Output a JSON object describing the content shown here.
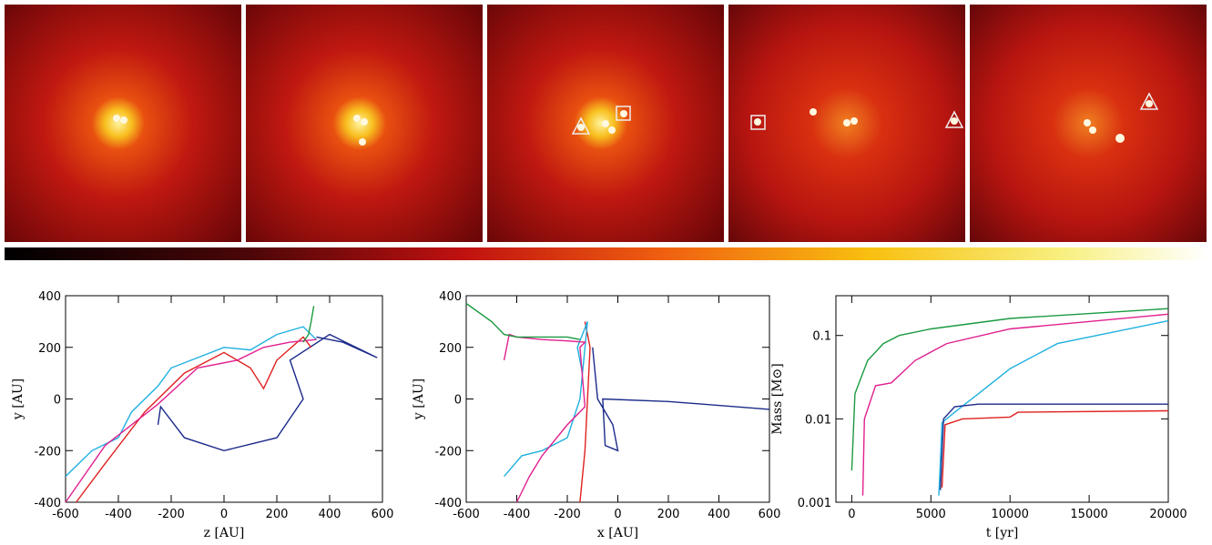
{
  "chart_data": [
    {
      "type": "line",
      "x_label": "z [AU]",
      "y_label": "y [AU]",
      "xlim": [
        -600,
        600
      ],
      "ylim": [
        -400,
        400
      ],
      "xticks": [
        -600,
        -400,
        -200,
        0,
        200,
        400,
        600
      ],
      "yticks": [
        -400,
        -200,
        0,
        200,
        400
      ],
      "series": [
        {
          "color": "#1b2a8a",
          "x": [
            -250,
            -240,
            -150,
            0,
            200,
            300,
            250,
            400,
            580,
            450,
            350
          ],
          "values": [
            -100,
            -30,
            -150,
            -200,
            -150,
            0,
            150,
            250,
            160,
            220,
            240
          ]
        },
        {
          "color": "#e02020",
          "x": [
            -560,
            -450,
            -300,
            -150,
            0,
            100,
            150,
            200,
            300,
            330
          ],
          "values": [
            -400,
            -250,
            -50,
            100,
            180,
            120,
            40,
            150,
            240,
            200
          ]
        },
        {
          "color": "#1fb0e0",
          "x": [
            -600,
            -500,
            -400,
            -350,
            -300,
            -250,
            -200,
            -100,
            0,
            100,
            200,
            300,
            350
          ],
          "values": [
            -300,
            -200,
            -150,
            -50,
            0,
            50,
            120,
            160,
            200,
            190,
            250,
            280,
            230
          ]
        },
        {
          "color": "#e0208f",
          "x": [
            -600,
            -450,
            -250,
            -100,
            50,
            150,
            250,
            350
          ],
          "values": [
            -400,
            -180,
            -20,
            120,
            150,
            200,
            220,
            230
          ]
        },
        {
          "color": "#1a9a40",
          "x": [
            340,
            330,
            320,
            300
          ],
          "values": [
            360,
            300,
            250,
            220
          ]
        }
      ]
    },
    {
      "type": "line",
      "x_label": "x [AU]",
      "y_label": "y [AU]",
      "xlim": [
        -600,
        600
      ],
      "ylim": [
        -400,
        400
      ],
      "xticks": [
        -600,
        -400,
        -200,
        0,
        200,
        400,
        600
      ],
      "yticks": [
        -400,
        -200,
        0,
        200,
        400
      ],
      "series": [
        {
          "color": "#1b2a8a",
          "x": [
            -100,
            -80,
            -20,
            0,
            -50,
            -60,
            200,
            600
          ],
          "values": [
            200,
            0,
            -100,
            -200,
            -180,
            0,
            -10,
            -40
          ]
        },
        {
          "color": "#e02020",
          "x": [
            -130,
            -110,
            -120,
            -130,
            -150
          ],
          "values": [
            300,
            200,
            0,
            -200,
            -400
          ]
        },
        {
          "color": "#1fb0e0",
          "x": [
            -450,
            -380,
            -300,
            -200,
            -150,
            -120,
            -160,
            -140
          ],
          "values": [
            -300,
            -220,
            -200,
            -150,
            0,
            300,
            200,
            100
          ]
        },
        {
          "color": "#e0208f",
          "x": [
            -450,
            -430,
            -400,
            -300,
            -200,
            -130,
            -150,
            -130,
            -200,
            -300,
            -350,
            -400
          ],
          "values": [
            150,
            250,
            240,
            230,
            225,
            220,
            200,
            -30,
            -100,
            -220,
            -300,
            -400
          ]
        },
        {
          "color": "#1a9a40",
          "x": [
            -600,
            -500,
            -450,
            -400,
            -300,
            -200,
            -150
          ],
          "values": [
            370,
            300,
            250,
            240,
            240,
            240,
            230
          ]
        }
      ]
    },
    {
      "type": "line",
      "x_label": "t [yr]",
      "y_label": "Mass [M⊙]",
      "log_y": true,
      "xlim": [
        -1000,
        20000
      ],
      "ylim": [
        0.001,
        0.3
      ],
      "xticks": [
        0,
        5000,
        10000,
        15000,
        20000
      ],
      "yticks": [
        0.001,
        0.01,
        0.1
      ],
      "series": [
        {
          "color": "#1a9a40",
          "x": [
            0,
            200,
            1000,
            2000,
            3000,
            5000,
            10000,
            20000
          ],
          "values": [
            0.0024,
            0.02,
            0.05,
            0.08,
            0.1,
            0.12,
            0.16,
            0.21
          ]
        },
        {
          "color": "#e0208f",
          "x": [
            700,
            800,
            1500,
            2500,
            4000,
            6000,
            10000,
            20000
          ],
          "values": [
            0.0012,
            0.01,
            0.025,
            0.027,
            0.05,
            0.08,
            0.12,
            0.18
          ]
        },
        {
          "color": "#1fb0e0",
          "x": [
            5500,
            5700,
            6500,
            8000,
            10000,
            13000,
            20000
          ],
          "values": [
            0.0012,
            0.009,
            0.012,
            0.02,
            0.04,
            0.08,
            0.15
          ]
        },
        {
          "color": "#1b2a8a",
          "x": [
            5600,
            5800,
            6500,
            8000,
            20000
          ],
          "values": [
            0.0014,
            0.01,
            0.014,
            0.015,
            0.015
          ]
        },
        {
          "color": "#e02020",
          "x": [
            5700,
            5900,
            7000,
            10000,
            10500,
            20000
          ],
          "values": [
            0.0015,
            0.0085,
            0.01,
            0.0105,
            0.012,
            0.0125
          ]
        }
      ]
    }
  ]
}
